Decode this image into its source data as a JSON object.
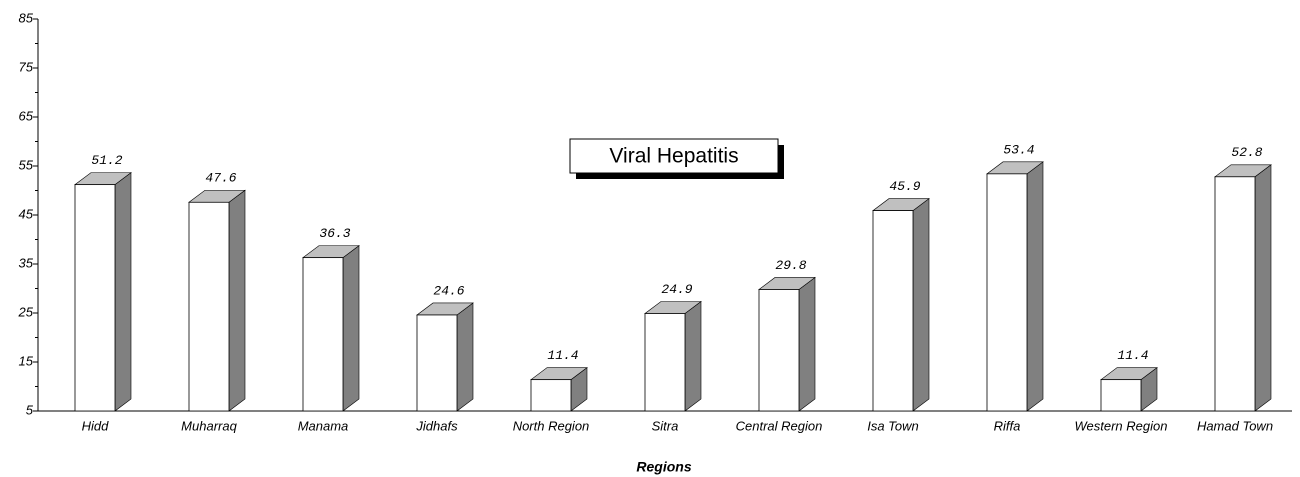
{
  "chart_data": {
    "type": "bar3d",
    "title": "Viral Hepatitis",
    "x_label": "Regions",
    "categories": [
      "Hidd",
      "Muharraq",
      "Manama",
      "Jidhafs",
      "North Region",
      "Sitra",
      "Central Region",
      "Isa Town",
      "Riffa",
      "Western Region",
      "Hamad Town"
    ],
    "values": [
      51.2,
      47.6,
      36.3,
      24.6,
      11.4,
      24.9,
      29.8,
      45.9,
      53.4,
      11.4,
      52.8
    ],
    "color": "#ffffff",
    "side_color": "#808080",
    "top_color": "#c0c0c0",
    "ylim": [
      5,
      85
    ],
    "yticks": [
      5,
      15,
      25,
      35,
      45,
      55,
      65,
      75,
      85
    ]
  }
}
